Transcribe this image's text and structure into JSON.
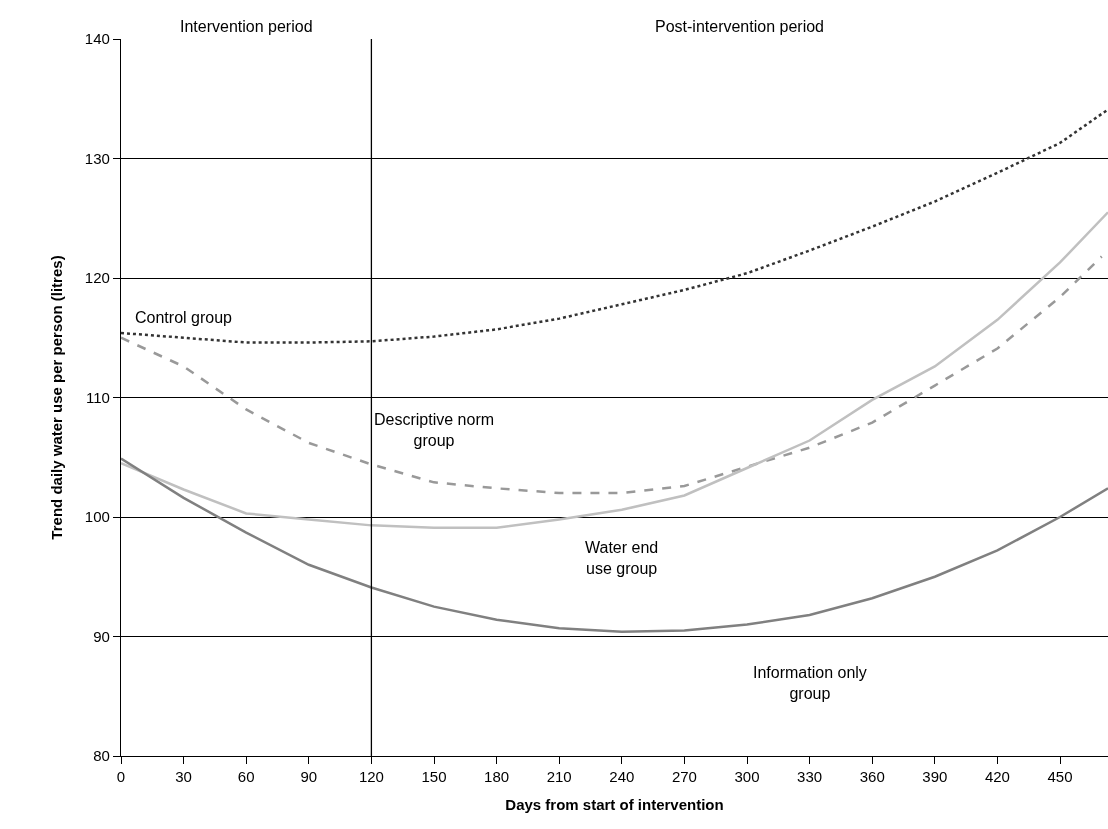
{
  "chart_data": {
    "type": "line",
    "xlabel": "Days from start of intervention",
    "ylabel": "Trend daily water use per person (litres)",
    "x": [
      0,
      30,
      60,
      90,
      120,
      150,
      180,
      210,
      240,
      270,
      300,
      330,
      360,
      390,
      420,
      450,
      473
    ],
    "series": [
      {
        "name": "Control group",
        "color": "#333333",
        "line_style": "dotted",
        "values": [
          115.4,
          115.0,
          114.6,
          114.6,
          114.7,
          115.1,
          115.7,
          116.6,
          117.8,
          119.0,
          120.4,
          122.3,
          124.3,
          126.4,
          128.8,
          131.3,
          134.1
        ]
      },
      {
        "name": "Descriptive norm group",
        "color": "#999999",
        "line_style": "dashed",
        "x": [
          0,
          30,
          60,
          90,
          120,
          150,
          180,
          210,
          240,
          270,
          300,
          330,
          360,
          390,
          420,
          450,
          470
        ],
        "values": [
          115.0,
          112.6,
          109.0,
          106.2,
          104.4,
          102.9,
          102.4,
          102.0,
          102.0,
          102.6,
          104.2,
          105.8,
          107.9,
          111.0,
          114.1,
          118.4,
          121.8
        ]
      },
      {
        "name": "Water end use group",
        "color": "#c0c0c0",
        "line_style": "solid",
        "values": [
          104.5,
          102.3,
          100.3,
          99.8,
          99.3,
          99.1,
          99.1,
          99.8,
          100.6,
          101.8,
          104.1,
          106.4,
          109.8,
          112.6,
          116.5,
          121.3,
          125.5
        ]
      },
      {
        "name": "Information only group",
        "color": "#808080",
        "line_style": "solid",
        "values": [
          104.9,
          101.6,
          98.7,
          96.0,
          94.1,
          92.5,
          91.4,
          90.7,
          90.4,
          90.5,
          91.0,
          91.8,
          93.2,
          95.0,
          97.2,
          100.0,
          102.4
        ]
      }
    ],
    "xlim": [
      0,
      473
    ],
    "xticks": [
      0,
      30,
      60,
      90,
      120,
      150,
      180,
      210,
      240,
      270,
      300,
      330,
      360,
      390,
      420,
      450
    ],
    "ylim": [
      80,
      140
    ],
    "yticks": [
      80,
      90,
      100,
      110,
      120,
      130,
      140
    ],
    "grid": "y",
    "legend": false,
    "marker": "none",
    "ref_lines": [
      {
        "axis": "x",
        "value": 120,
        "color": "#000000",
        "line_style": "solid"
      }
    ],
    "annotations": [
      "Intervention period",
      "Post-intervention period"
    ]
  }
}
